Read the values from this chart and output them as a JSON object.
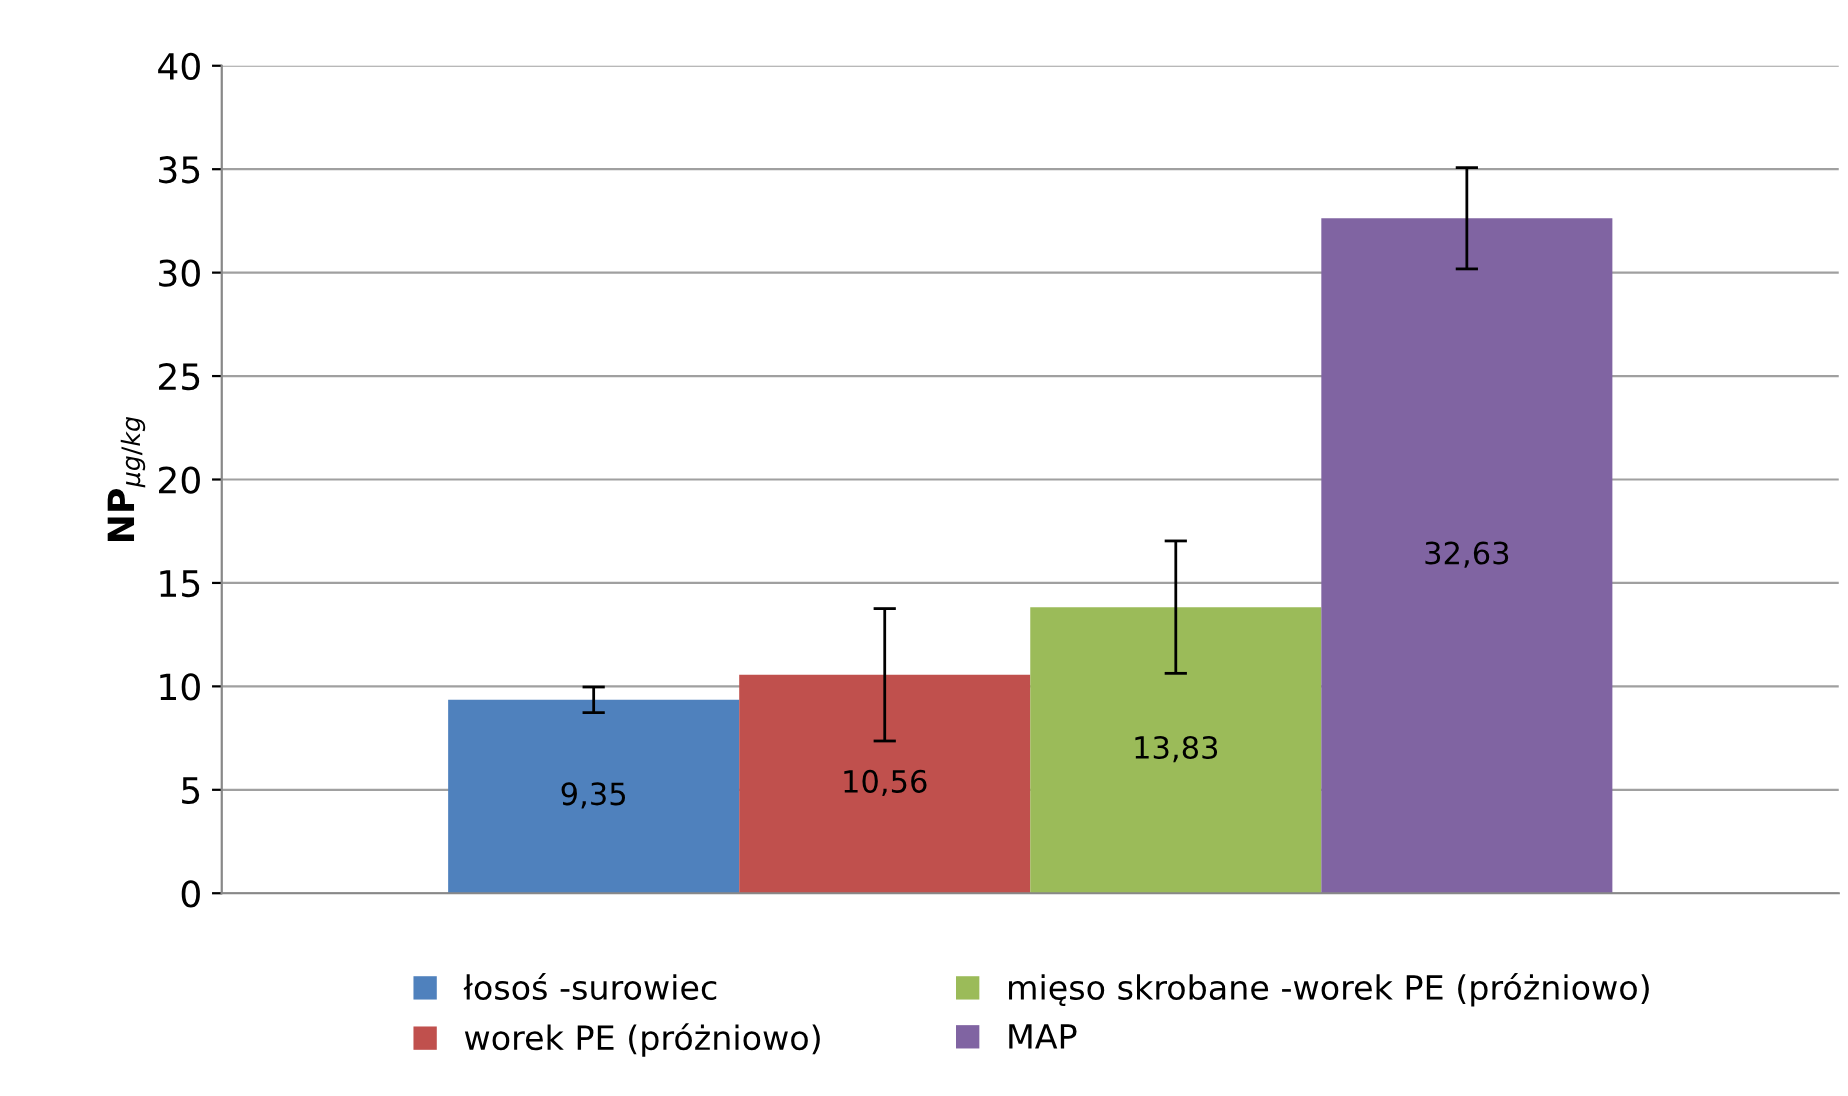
{
  "chart_data": {
    "type": "bar",
    "ylabel": "NP$_{µg/kg}$",
    "categories": [
      null
    ],
    "series": [
      {
        "name": "łosoś -surowiec",
        "color": "#4f81bd",
        "values": [
          9.35
        ],
        "errors": [
          0.62
        ],
        "value_labels": [
          "9,35"
        ]
      },
      {
        "name": "worek PE (próżniowo)",
        "color": "#c0504d",
        "values": [
          10.56
        ],
        "errors": [
          3.2
        ],
        "value_labels": [
          "10,56"
        ]
      },
      {
        "name": "mięso skrobane -worek PE (próżniowo)",
        "color": "#9bbb59",
        "values": [
          13.83
        ],
        "errors": [
          3.2
        ],
        "value_labels": [
          "13,83"
        ]
      },
      {
        "name": "MAP",
        "color": "#8064a2",
        "values": [
          32.63
        ],
        "errors": [
          2.45
        ],
        "value_labels": [
          "32,63"
        ]
      }
    ],
    "ylim": [
      0,
      40
    ],
    "yticks": [
      0,
      5,
      10,
      15,
      20,
      25,
      30,
      35,
      40
    ],
    "grid": "y",
    "legend": "bottom"
  }
}
